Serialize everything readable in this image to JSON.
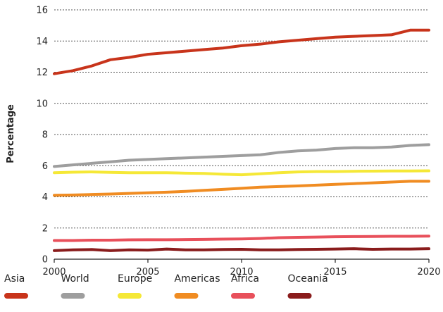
{
  "chart_data": {
    "type": "line",
    "title": "",
    "xlabel": "",
    "ylabel": "Percentage",
    "xlim": [
      2000,
      2020
    ],
    "ylim": [
      0,
      16
    ],
    "xticks": [
      2000,
      2005,
      2010,
      2015,
      2020
    ],
    "yticks": [
      0,
      2,
      4,
      6,
      8,
      10,
      12,
      14,
      16
    ],
    "grid": "horizontal-dotted",
    "legend_position": "bottom",
    "x": [
      2000,
      2001,
      2002,
      2003,
      2004,
      2005,
      2006,
      2007,
      2008,
      2009,
      2010,
      2011,
      2012,
      2013,
      2014,
      2015,
      2016,
      2017,
      2018,
      2019,
      2020
    ],
    "series": [
      {
        "name": "Asia",
        "color": "#c8341b",
        "values": [
          11.9,
          12.1,
          12.4,
          12.8,
          12.95,
          13.15,
          13.25,
          13.35,
          13.45,
          13.55,
          13.7,
          13.8,
          13.95,
          14.05,
          14.15,
          14.25,
          14.3,
          14.35,
          14.4,
          14.7,
          14.7
        ]
      },
      {
        "name": "World",
        "color": "#9e9e9e",
        "values": [
          5.95,
          6.05,
          6.15,
          6.25,
          6.35,
          6.4,
          6.45,
          6.5,
          6.55,
          6.6,
          6.65,
          6.7,
          6.85,
          6.95,
          7.0,
          7.1,
          7.15,
          7.15,
          7.2,
          7.3,
          7.35
        ]
      },
      {
        "name": "Europe",
        "color": "#f5e837",
        "values": [
          5.55,
          5.58,
          5.6,
          5.57,
          5.55,
          5.55,
          5.55,
          5.52,
          5.5,
          5.45,
          5.42,
          5.48,
          5.55,
          5.6,
          5.62,
          5.62,
          5.64,
          5.65,
          5.66,
          5.66,
          5.67
        ]
      },
      {
        "name": "Americas",
        "color": "#f08c22",
        "values": [
          4.1,
          4.12,
          4.15,
          4.18,
          4.22,
          4.26,
          4.3,
          4.35,
          4.42,
          4.48,
          4.55,
          4.62,
          4.66,
          4.7,
          4.75,
          4.8,
          4.85,
          4.9,
          4.95,
          5.0,
          5.0
        ]
      },
      {
        "name": "Africa",
        "color": "#e8505b",
        "values": [
          1.2,
          1.2,
          1.22,
          1.22,
          1.24,
          1.25,
          1.25,
          1.26,
          1.27,
          1.29,
          1.3,
          1.33,
          1.38,
          1.4,
          1.42,
          1.44,
          1.45,
          1.46,
          1.47,
          1.47,
          1.48
        ]
      },
      {
        "name": "Oceania",
        "color": "#8a1c1c",
        "values": [
          0.55,
          0.6,
          0.62,
          0.55,
          0.6,
          0.58,
          0.65,
          0.6,
          0.6,
          0.62,
          0.63,
          0.6,
          0.6,
          0.62,
          0.63,
          0.65,
          0.67,
          0.63,
          0.65,
          0.65,
          0.67
        ]
      }
    ]
  }
}
